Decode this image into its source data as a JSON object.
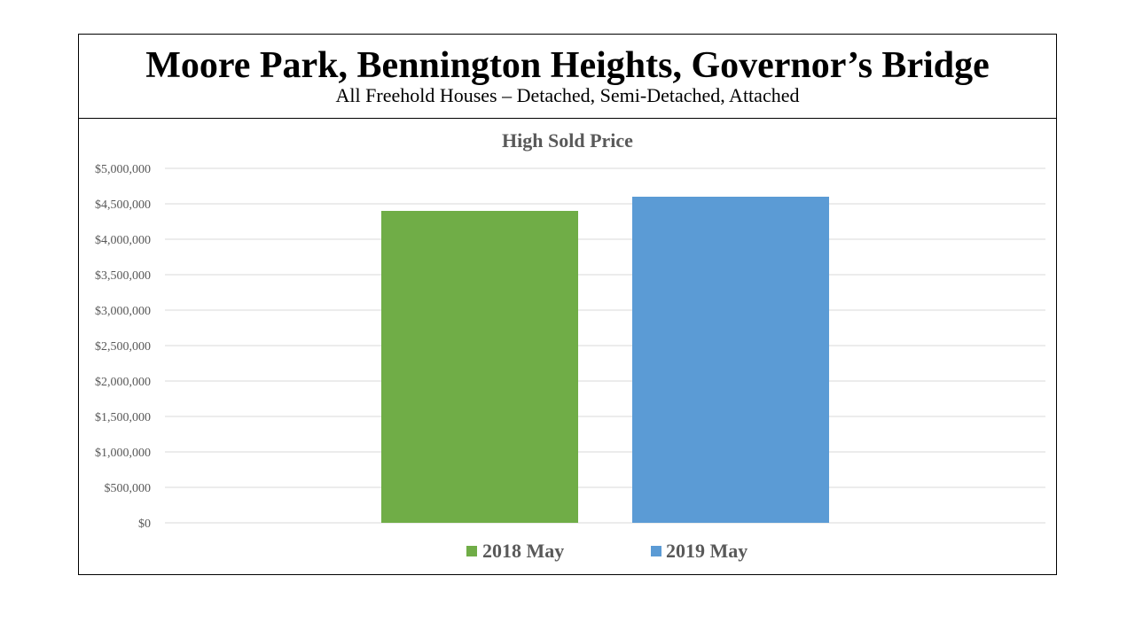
{
  "header": {
    "title": "Moore Park, Bennington Heights, Governor’s Bridge",
    "subtitle": "All Freehold Houses – Detached, Semi-Detached, Attached"
  },
  "chart_data": {
    "type": "bar",
    "title": "High Sold Price",
    "xlabel": "",
    "ylabel": "",
    "ylim": [
      0,
      5000000
    ],
    "y_ticks": [
      0,
      500000,
      1000000,
      1500000,
      2000000,
      2500000,
      3000000,
      3500000,
      4000000,
      4500000,
      5000000
    ],
    "y_tick_labels": [
      "$0",
      "$500,000",
      "$1,000,000",
      "$1,500,000",
      "$2,000,000",
      "$2,500,000",
      "$3,000,000",
      "$3,500,000",
      "$4,000,000",
      "$4,500,000",
      "$5,000,000"
    ],
    "grid": true,
    "legend_position": "bottom",
    "series": [
      {
        "name": "2018 May",
        "values": [
          4400000
        ],
        "color": "#70ad47"
      },
      {
        "name": "2019 May",
        "values": [
          4600000
        ],
        "color": "#5b9bd5"
      }
    ]
  }
}
